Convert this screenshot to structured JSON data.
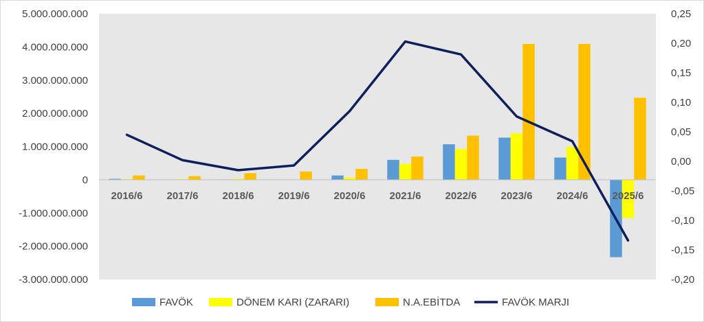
{
  "chart_data": {
    "type": "bar",
    "title": "",
    "xlabel": "",
    "ylabel": "",
    "categories": [
      "2016/6",
      "2017/6",
      "2018/6",
      "2019/6",
      "2020/6",
      "2021/6",
      "2022/6",
      "2023/6",
      "2024/6",
      "2025/6"
    ],
    "series": [
      {
        "name": "FAVÖK",
        "type": "bar",
        "axis": "left",
        "color": "#5B9BD5",
        "values": [
          30000000,
          5000000,
          10000000,
          0,
          130000000,
          600000000,
          1070000000,
          1270000000,
          670000000,
          -2330000000
        ]
      },
      {
        "name": "DÖNEM KARI (ZARARI)",
        "type": "bar",
        "axis": "left",
        "color": "#FFFF00",
        "values": [
          20000000,
          20000000,
          30000000,
          0,
          70000000,
          480000000,
          930000000,
          1400000000,
          990000000,
          -1150000000
        ]
      },
      {
        "name": "N.A.EBİTDA",
        "type": "bar",
        "axis": "left",
        "color": "#FFC000",
        "values": [
          130000000,
          110000000,
          200000000,
          250000000,
          330000000,
          700000000,
          1330000000,
          4090000000,
          4090000000,
          2470000000
        ]
      },
      {
        "name": "FAVÖK MARJI",
        "type": "line",
        "axis": "right",
        "color": "#0D1F5C",
        "values": [
          0.045,
          0.002,
          -0.015,
          -0.007,
          0.085,
          0.203,
          0.181,
          0.076,
          0.034,
          -0.134
        ]
      }
    ],
    "left_axis": {
      "min": -3000000000,
      "max": 5000000000,
      "step": 1000000000,
      "tick_labels": [
        "-3.000.000.000",
        "-2.000.000.000",
        "-1.000.000.000",
        "0",
        "1.000.000.000",
        "2.000.000.000",
        "3.000.000.000",
        "4.000.000.000",
        "5.000.000.000"
      ]
    },
    "right_axis": {
      "min": -0.2,
      "max": 0.25,
      "step": 0.05,
      "tick_labels": [
        "-0,20",
        "-0,15",
        "-0,10",
        "-0,05",
        "0,00",
        "0,05",
        "0,10",
        "0,15",
        "0,20",
        "0,25"
      ]
    },
    "grid": false,
    "legend_position": "bottom",
    "plot_background": "#E7E7E7"
  }
}
